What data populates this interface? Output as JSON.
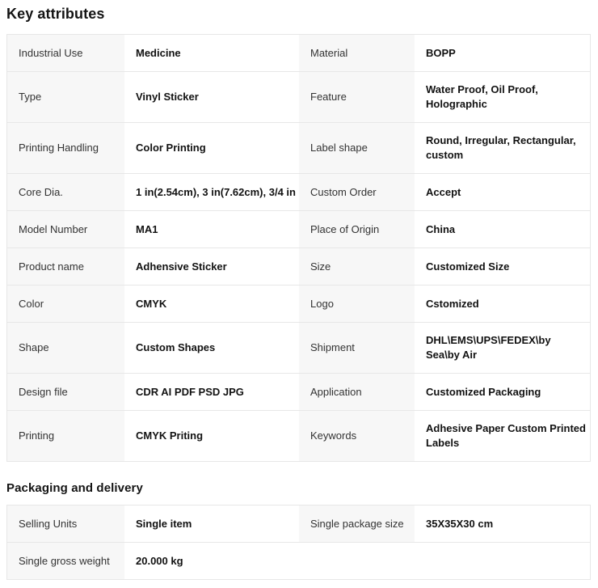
{
  "colors": {
    "label_cell_bg": "#f7f7f7",
    "border": "#e7e7e7",
    "label_text": "#333333",
    "value_text": "#121212",
    "heading_text": "#141414"
  },
  "sections": {
    "key": {
      "title": "Key attributes",
      "rows": [
        [
          {
            "label": "Industrial Use",
            "value": "Medicine"
          },
          {
            "label": "Material",
            "value": "BOPP"
          }
        ],
        [
          {
            "label": "Type",
            "value": "Vinyl Sticker"
          },
          {
            "label": "Feature",
            "value": "Water Proof, Oil Proof, Holographic"
          }
        ],
        [
          {
            "label": "Printing Handling",
            "value": "Color Printing"
          },
          {
            "label": "Label shape",
            "value": "Round, Irregular, Rectangular, custom"
          }
        ],
        [
          {
            "label": "Core Dia.",
            "value": "1 in(2.54cm), 3 in(7.62cm), 3/4 in"
          },
          {
            "label": "Custom Order",
            "value": "Accept"
          }
        ],
        [
          {
            "label": "Model Number",
            "value": "MA1"
          },
          {
            "label": "Place of Origin",
            "value": "China"
          }
        ],
        [
          {
            "label": "Product name",
            "value": "Adhensive Sticker"
          },
          {
            "label": "Size",
            "value": "Customized Size"
          }
        ],
        [
          {
            "label": "Color",
            "value": "CMYK"
          },
          {
            "label": "Logo",
            "value": "Cstomized"
          }
        ],
        [
          {
            "label": "Shape",
            "value": "Custom Shapes"
          },
          {
            "label": "Shipment",
            "value": "DHL\\EMS\\UPS\\FEDEX\\by Sea\\by Air"
          }
        ],
        [
          {
            "label": "Design file",
            "value": "CDR AI PDF PSD JPG"
          },
          {
            "label": "Application",
            "value": "Customized Packaging"
          }
        ],
        [
          {
            "label": "Printing",
            "value": "CMYK Priting"
          },
          {
            "label": "Keywords",
            "value": "Adhesive Paper Custom Printed Labels"
          }
        ]
      ]
    },
    "packaging": {
      "title": "Packaging and delivery",
      "rows": [
        [
          {
            "label": "Selling Units",
            "value": "Single item"
          },
          {
            "label": "Single package size",
            "value": "35X35X30 cm"
          }
        ],
        [
          {
            "label": "Single gross weight",
            "value": "20.000 kg"
          }
        ]
      ]
    }
  }
}
